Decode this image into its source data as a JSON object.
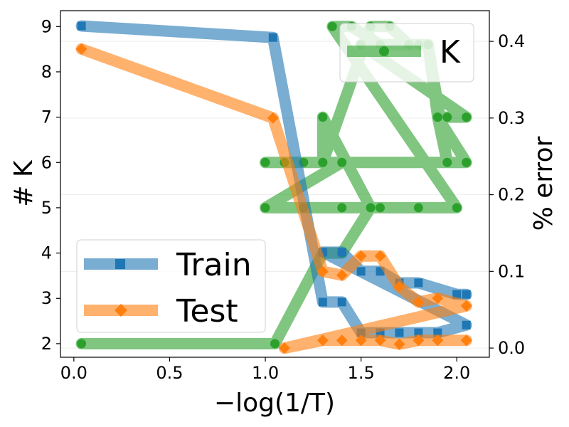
{
  "chart_data": {
    "type": "line",
    "xlabel": "−log(1/T)",
    "ylabel_left": "# K",
    "ylabel_right": "% error",
    "xlim": [
      -0.07,
      2.17
    ],
    "ylim_left": [
      1.7,
      9.35
    ],
    "ylim_right": [
      -0.012,
      0.44
    ],
    "x_ticks": [
      "0.0",
      "0.5",
      "1.0",
      "1.5",
      "2.0"
    ],
    "y_left_ticks": [
      "2",
      "3",
      "4",
      "5",
      "6",
      "7",
      "8",
      "9"
    ],
    "y_right_ticks": [
      "0.0",
      "0.1",
      "0.2",
      "0.3",
      "0.4"
    ],
    "x_tick_values": [
      0,
      0.5,
      1.0,
      1.5,
      2.0
    ],
    "y_left_tick_values": [
      2,
      3,
      4,
      5,
      6,
      7,
      8,
      9
    ],
    "y_right_tick_values": [
      0,
      0.1,
      0.2,
      0.3,
      0.4
    ],
    "grid": true,
    "legend_left": {
      "placement": "lower-left",
      "entries": [
        "Train",
        "Test"
      ]
    },
    "legend_right": {
      "placement": "upper-right",
      "entries": [
        "K"
      ]
    },
    "series": [
      {
        "name": "K",
        "axis": "left",
        "color": "#2ca02c",
        "marker": "circle",
        "x": [
          0.04,
          1.05,
          1.3,
          1.4,
          1.55,
          1.3,
          1.3,
          1.55,
          1.65,
          1.75,
          1.85,
          1.9,
          1.95,
          2.05,
          1.5,
          1.75,
          1.85,
          1.95,
          1.9,
          2.05,
          1.0,
          1.1,
          1.2,
          1.3,
          1.4,
          1.0,
          1.2,
          1.4,
          1.6,
          1.8,
          2.0,
          1.35,
          1.45,
          1.6,
          1.8
        ],
        "y": [
          2,
          2,
          4,
          4,
          5,
          7,
          6,
          9,
          9,
          8.6,
          8.6,
          7,
          7,
          7,
          8.6,
          8.6,
          8.6,
          6,
          7,
          6,
          6,
          6,
          6,
          6,
          6,
          5,
          5,
          5,
          5,
          5,
          5,
          9,
          9,
          8.6,
          8.6
        ]
      },
      {
        "name": "Train",
        "axis": "right",
        "color": "#1f77b4",
        "marker": "square",
        "x": [
          0.04,
          1.04,
          1.3,
          1.4,
          1.5,
          1.6,
          1.7,
          1.8,
          1.9,
          2.05,
          1.3,
          1.4,
          1.5,
          1.6,
          1.7,
          1.8,
          2.0,
          2.05
        ],
        "y": [
          0.42,
          0.405,
          0.06,
          0.06,
          0.02,
          0.02,
          0.02,
          0.02,
          0.02,
          0.03,
          0.125,
          0.125,
          0.1,
          0.1,
          0.085,
          0.085,
          0.07,
          0.07
        ]
      },
      {
        "name": "Test",
        "axis": "right",
        "color": "#ff7f0e",
        "marker": "diamond",
        "x": [
          0.04,
          1.04,
          1.3,
          1.4,
          1.5,
          1.6,
          1.7,
          1.8,
          1.9,
          2.05,
          1.1,
          1.3,
          1.4,
          1.5,
          1.6,
          1.7,
          1.8,
          1.9,
          2.05
        ],
        "y": [
          0.39,
          0.3,
          0.1,
          0.095,
          0.12,
          0.12,
          0.08,
          0.06,
          0.065,
          0.055,
          0.0,
          0.01,
          0.01,
          0.01,
          0.01,
          0.005,
          0.01,
          0.01,
          0.01
        ]
      }
    ]
  }
}
